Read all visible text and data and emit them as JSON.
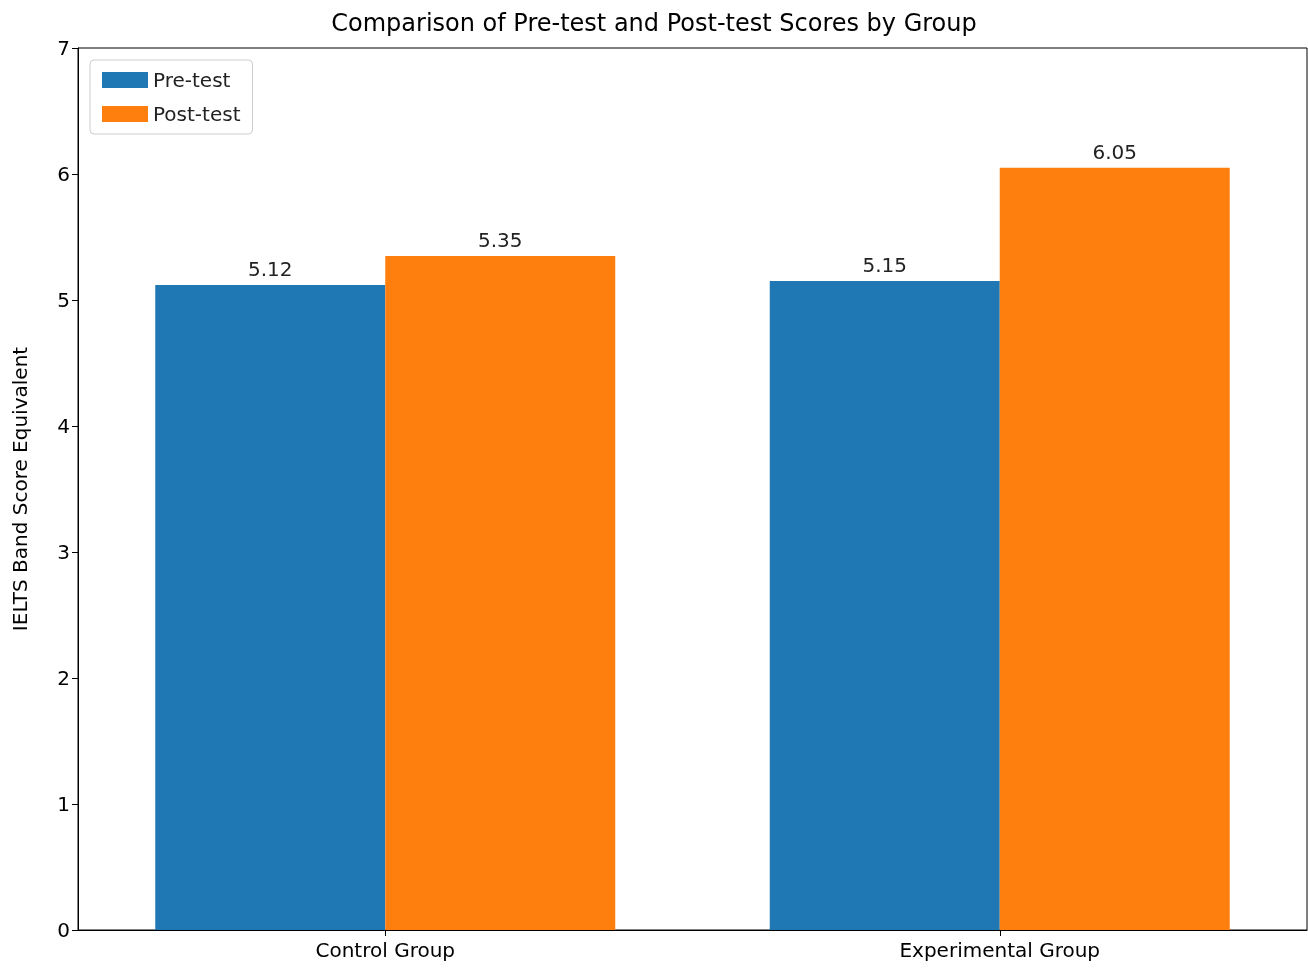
{
  "chart_data": {
    "type": "bar",
    "title": "Comparison of Pre-test and Post-test Scores by Group",
    "ylabel": "IELTS Band Score Equivalent",
    "categories": [
      "Control Group",
      "Experimental Group"
    ],
    "series": [
      {
        "name": "Pre-test",
        "color": "#1f77b4",
        "values": [
          5.12,
          5.15
        ]
      },
      {
        "name": "Post-test",
        "color": "#ff7f0e",
        "values": [
          5.35,
          6.05
        ]
      }
    ],
    "ylim": [
      0,
      7
    ],
    "yticks": [
      0,
      1,
      2,
      3,
      4,
      5,
      6,
      7
    ],
    "data_labels": true,
    "legend": "top left",
    "grid": false
  }
}
